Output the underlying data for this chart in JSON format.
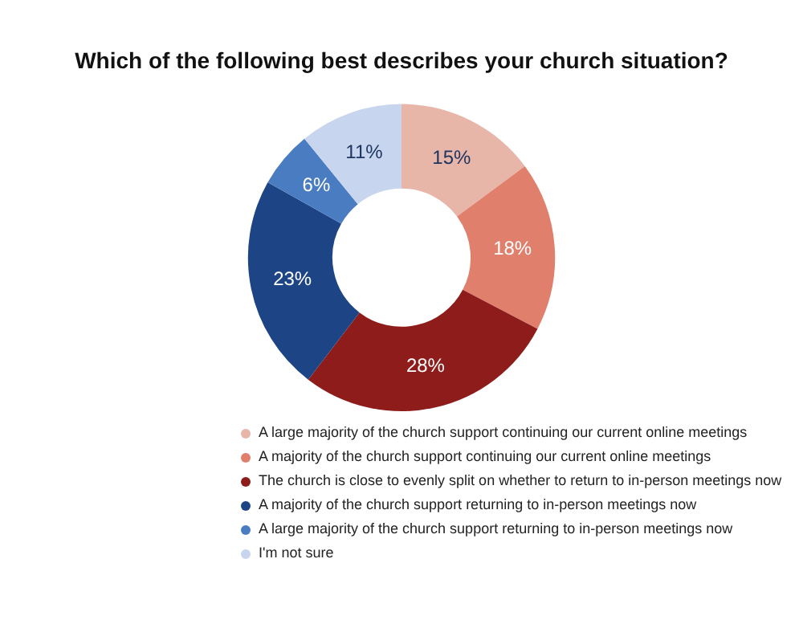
{
  "chart_data": {
    "type": "donut",
    "title": "Which of the following best describes your church situation?",
    "categories": [
      "A large majority of the church support continuing our current online meetings",
      "A majority of the church support continuing our current online meetings",
      "The church is close to evenly split on whether to return to in-person meetings now",
      "A majority of the church support returning to in-person meetings now",
      "A large majority of the church support returning to in-person meetings now",
      "I'm not sure"
    ],
    "values": [
      15,
      18,
      28,
      23,
      6,
      11
    ],
    "value_labels": [
      "15%",
      "18%",
      "28%",
      "23%",
      "6%",
      "11%"
    ],
    "colors": [
      "#e8b5a9",
      "#e07f6c",
      "#8e1c1a",
      "#1d4585",
      "#4a7cc2",
      "#c8d5ee"
    ],
    "legend": "bottom"
  }
}
